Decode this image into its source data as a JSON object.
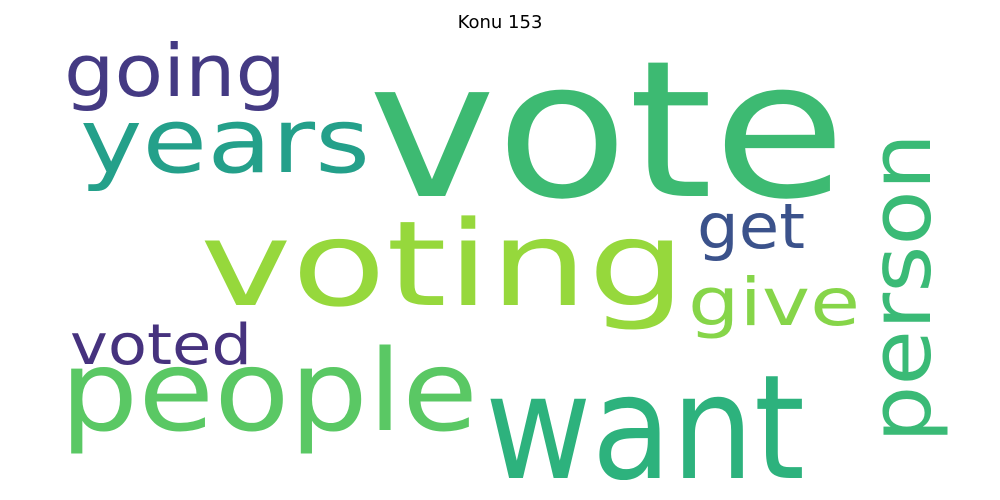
{
  "title": "Konu 153",
  "words": [
    {
      "text": "vote",
      "color": "#3dba72"
    },
    {
      "text": "voting",
      "color": "#96d83c"
    },
    {
      "text": "people",
      "color": "#5ac864"
    },
    {
      "text": "want",
      "color": "#2db27d"
    },
    {
      "text": "years",
      "color": "#24a08a"
    },
    {
      "text": "person",
      "color": "#3aba76"
    },
    {
      "text": "going",
      "color": "#443a83"
    },
    {
      "text": "get",
      "color": "#3b528b"
    },
    {
      "text": "give",
      "color": "#86d549"
    },
    {
      "text": "voted",
      "color": "#46327e"
    }
  ]
}
